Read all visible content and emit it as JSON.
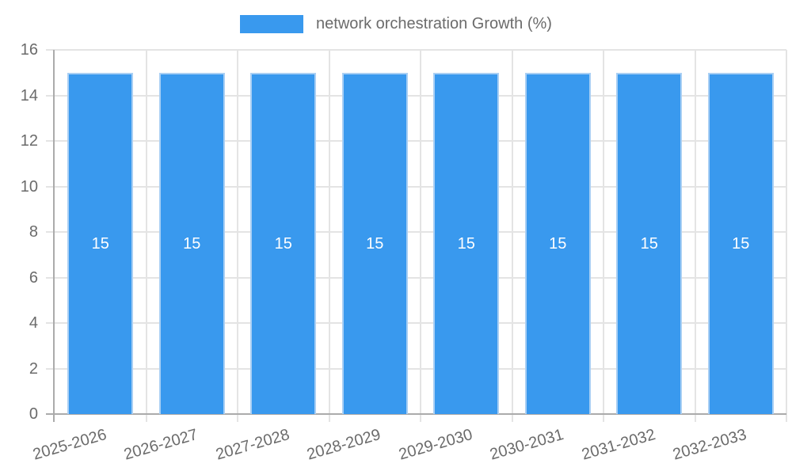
{
  "chart_data": {
    "type": "bar",
    "title": "",
    "legend_label": "network orchestration Growth (%)",
    "legend_position": "top",
    "categories": [
      "2025-2026",
      "2026-2027",
      "2027-2028",
      "2028-2029",
      "2029-2030",
      "2030-2031",
      "2031-2032",
      "2032-2033"
    ],
    "series": [
      {
        "name": "network orchestration Growth (%)",
        "values": [
          15,
          15,
          15,
          15,
          15,
          15,
          15,
          15
        ]
      }
    ],
    "values": [
      15,
      15,
      15,
      15,
      15,
      15,
      15,
      15
    ],
    "bar_value_labels": [
      "15",
      "15",
      "15",
      "15",
      "15",
      "15",
      "15",
      "15"
    ],
    "xlabel": "",
    "ylabel": "",
    "ylim": [
      0,
      16
    ],
    "yticks": [
      0,
      2,
      4,
      6,
      8,
      10,
      12,
      14,
      16
    ],
    "grid": true,
    "colors": {
      "bar_fill": "#3999EE",
      "bar_border": "#A9CFF4",
      "grid_line": "#E4E4E4",
      "axis_line": "#ABABAB",
      "tick_text": "#6B6B6B",
      "value_label_text": "#FFFFFF"
    }
  }
}
